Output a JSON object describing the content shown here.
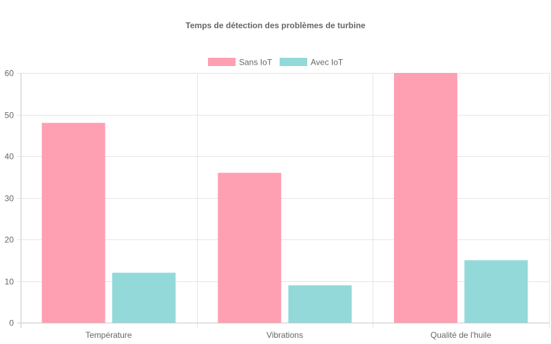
{
  "chart_data": {
    "type": "bar",
    "title": "Temps de détection des problèmes de turbine",
    "categories": [
      "Température",
      "Vibrations",
      "Qualité de l'huile"
    ],
    "series": [
      {
        "name": "Sans IoT",
        "values": [
          48,
          36,
          60
        ],
        "color": "#ff9fb2"
      },
      {
        "name": "Avec IoT",
        "values": [
          12,
          9,
          15
        ],
        "color": "#93d9d9"
      }
    ],
    "yticks": [
      0,
      10,
      20,
      30,
      40,
      50,
      60
    ],
    "ylim": [
      0,
      60
    ],
    "legend": "top",
    "grid": true
  }
}
